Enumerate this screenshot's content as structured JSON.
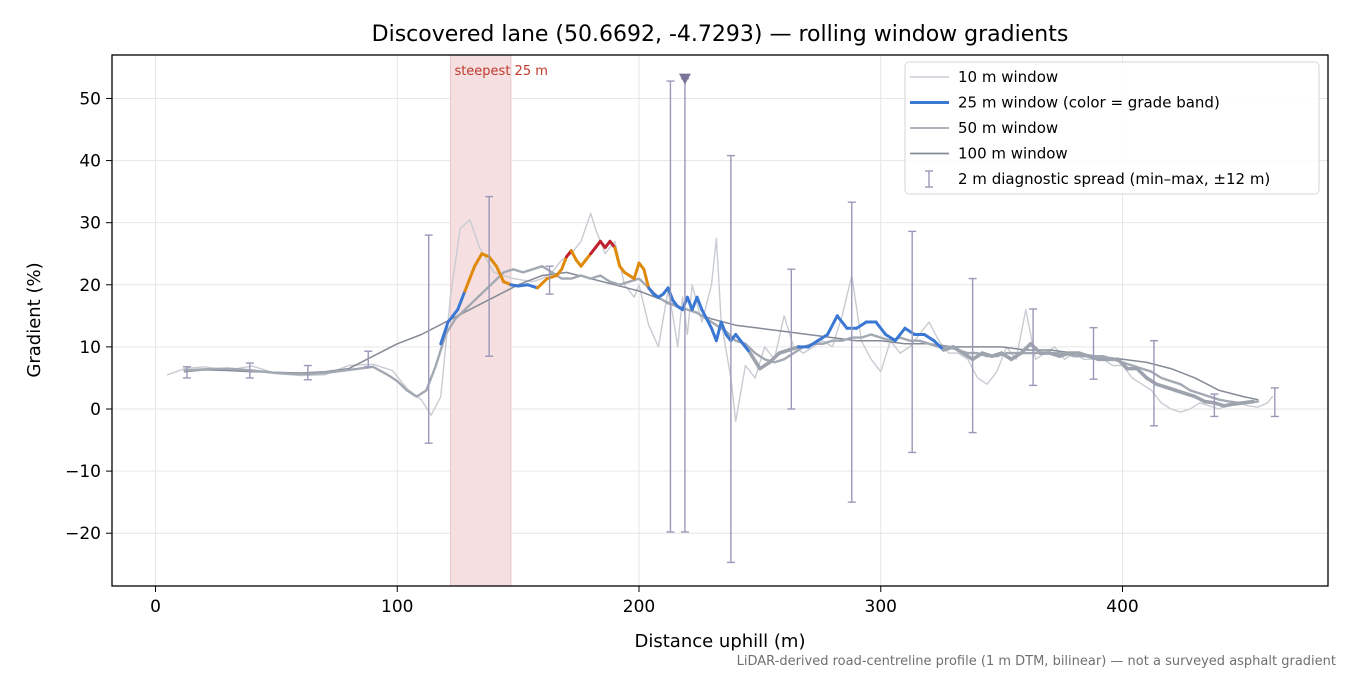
{
  "chart_data": {
    "type": "line",
    "title": "Discovered lane (50.6692, -4.7293) — rolling window gradients",
    "xlabel": "Distance uphill (m)",
    "ylabel": "Gradient (%)",
    "xlim": [
      -18,
      485
    ],
    "ylim": [
      -28.5,
      57
    ],
    "x_ticks": [
      0,
      100,
      200,
      300,
      400
    ],
    "y_ticks": [
      -20,
      -10,
      0,
      10,
      20,
      30,
      40,
      50
    ],
    "grid": true,
    "legend_position": "top-right",
    "footnote": "LiDAR-derived road-centreline profile (1 m DTM, bilinear) — not a surveyed asphalt gradient",
    "annotations": {
      "steepest_label": "steepest 25 m",
      "steepest_span": [
        122,
        147
      ],
      "clipped_marker": {
        "x": 219,
        "y": 53.2
      }
    },
    "legend": [
      {
        "label": "10 m window",
        "color": "#c8ccd2",
        "kind": "line"
      },
      {
        "label": "25 m window (color = grade band)",
        "color": "#3a78d4",
        "kind": "line"
      },
      {
        "label": "50 m window",
        "color": "#a3a9b3",
        "kind": "line"
      },
      {
        "label": "100 m window",
        "color": "#858b96",
        "kind": "line"
      },
      {
        "label": "2 m diagnostic spread (min–max, ±12 m)",
        "color": "#9a98b8",
        "kind": "errorbar"
      }
    ],
    "series": [
      {
        "name": "10 m window",
        "color": "#c8ccd2",
        "x": [
          5,
          12,
          20,
          30,
          40,
          50,
          60,
          70,
          80,
          90,
          98,
          104,
          110,
          114,
          118,
          122,
          126,
          130,
          134,
          140,
          148,
          156,
          160,
          164,
          168,
          172,
          176,
          180,
          182,
          186,
          190,
          194,
          198,
          200,
          204,
          208,
          210,
          212,
          214,
          216,
          218,
          220,
          222,
          226,
          230,
          232,
          234,
          238,
          240,
          244,
          248,
          252,
          256,
          260,
          264,
          268,
          272,
          276,
          280,
          284,
          288,
          292,
          296,
          300,
          304,
          308,
          312,
          316,
          320,
          324,
          328,
          332,
          336,
          340,
          344,
          348,
          352,
          356,
          360,
          364,
          368,
          372,
          376,
          380,
          384,
          388,
          392,
          396,
          400,
          404,
          408,
          412,
          416,
          420,
          424,
          428,
          432,
          436,
          440,
          444,
          448,
          452,
          456,
          460,
          462
        ],
        "y": [
          5.5,
          6.5,
          6.8,
          6.3,
          6.9,
          5.7,
          5.4,
          5.5,
          7.0,
          7.2,
          6.2,
          3.3,
          1.5,
          -1,
          2,
          18,
          29,
          30.5,
          26,
          22,
          21,
          20.5,
          21,
          22,
          24,
          25,
          27,
          31.5,
          29,
          25,
          27,
          20,
          18,
          20,
          13.5,
          10,
          14.5,
          19,
          15,
          10,
          18,
          12,
          20,
          14,
          20,
          27.5,
          14,
          5,
          -2,
          7,
          5,
          10,
          8,
          15,
          10,
          9,
          10,
          11,
          10,
          15,
          21.5,
          11,
          8,
          6,
          11,
          9,
          10,
          12,
          14,
          11,
          9,
          9,
          8,
          5,
          4,
          6,
          10,
          8,
          16,
          8,
          9,
          10,
          8,
          9,
          8,
          8,
          8,
          7,
          7,
          5,
          4,
          3,
          1,
          0,
          -0.5,
          0,
          1,
          0.5,
          0,
          0.8,
          1,
          0.5,
          0.3,
          1,
          2
        ]
      },
      {
        "name": "25 m window (color = grade band)",
        "color": "#3a78d4",
        "x": [
          118,
          121,
          125,
          128,
          130,
          132,
          135,
          138,
          141,
          144,
          147,
          150,
          154,
          158,
          162,
          166,
          168,
          170,
          172,
          174,
          176,
          178,
          180,
          182,
          184,
          186,
          188,
          190,
          192,
          194,
          196,
          198,
          200,
          202,
          204,
          206,
          208,
          210,
          212,
          214,
          216,
          218,
          220,
          222,
          224,
          226,
          228,
          230,
          232,
          234,
          236,
          238,
          240,
          242,
          246,
          250,
          254,
          258,
          262,
          266,
          270,
          274,
          278,
          282,
          286,
          290,
          294,
          298,
          302,
          306,
          310,
          314,
          318,
          322,
          326,
          330,
          334,
          338,
          342,
          346,
          350,
          354,
          358,
          362,
          366,
          370,
          374,
          378,
          382,
          386,
          390,
          394,
          398,
          402,
          406,
          410,
          414,
          418,
          422,
          426,
          430,
          434,
          438,
          442,
          446,
          450,
          454
        ],
        "y": [
          10.5,
          14,
          16,
          19,
          21,
          23,
          25,
          24.5,
          23,
          20.5,
          20,
          19.8,
          20,
          19.5,
          21,
          21.5,
          22.5,
          24.5,
          25.5,
          24,
          23,
          24,
          25,
          26,
          27,
          26,
          27,
          26,
          23,
          22,
          21.5,
          21,
          23.5,
          22.5,
          19.5,
          18.5,
          18,
          18.5,
          19.5,
          17.5,
          16.5,
          16,
          18,
          16,
          18,
          16,
          14.5,
          13,
          11,
          14,
          12,
          11,
          12,
          11,
          9,
          6.5,
          7.5,
          9,
          9.5,
          10,
          10,
          11,
          12,
          15,
          13,
          13,
          14,
          14,
          12,
          11,
          13,
          12,
          12,
          11,
          9.5,
          10,
          9,
          8,
          9,
          8.5,
          9,
          8,
          9,
          10.5,
          9,
          9,
          8.5,
          9,
          9,
          8.5,
          8,
          8,
          8,
          6.5,
          6.5,
          5,
          4,
          3.5,
          3,
          2.5,
          2,
          1.2,
          1,
          0.5,
          0.8,
          1,
          1.2
        ]
      },
      {
        "name": "50 m window",
        "color": "#a3a9b3",
        "x": [
          12,
          20,
          30,
          40,
          50,
          60,
          70,
          80,
          90,
          96,
          100,
          104,
          108,
          112,
          116,
          120,
          124,
          128,
          132,
          136,
          140,
          144,
          148,
          152,
          156,
          160,
          164,
          168,
          172,
          176,
          180,
          184,
          188,
          192,
          196,
          200,
          204,
          208,
          212,
          216,
          220,
          224,
          228,
          232,
          236,
          240,
          244,
          248,
          252,
          256,
          260,
          264,
          268,
          272,
          276,
          280,
          284,
          288,
          292,
          296,
          300,
          304,
          308,
          312,
          316,
          320,
          324,
          328,
          332,
          336,
          340,
          344,
          348,
          352,
          356,
          360,
          364,
          368,
          372,
          376,
          380,
          384,
          388,
          392,
          396,
          400,
          404,
          408,
          412,
          416,
          420,
          424,
          428,
          432,
          436,
          440,
          444,
          448,
          452,
          456
        ],
        "y": [
          6.2,
          6.4,
          6.5,
          6.2,
          5.8,
          5.6,
          5.8,
          6.3,
          6.8,
          5.5,
          4.5,
          3,
          2,
          3,
          7,
          12,
          14.5,
          16,
          17.5,
          19,
          20.5,
          22,
          22.5,
          22,
          22.5,
          23,
          22,
          21,
          21,
          21.5,
          21,
          21.5,
          20.5,
          20,
          20.5,
          21,
          19.5,
          18,
          17,
          16.5,
          16,
          15.5,
          14.5,
          13.5,
          12.5,
          11,
          10.5,
          9,
          8,
          7.5,
          8,
          9,
          10,
          10.5,
          10.5,
          11,
          11,
          11.5,
          11.5,
          12,
          11.5,
          11,
          11.5,
          11,
          11,
          10.5,
          10,
          10,
          9.5,
          9,
          9,
          8.5,
          8.5,
          9,
          9,
          9,
          9,
          9,
          9,
          9,
          8.5,
          8.5,
          8.5,
          8.5,
          8,
          7.5,
          7,
          6.5,
          6,
          5,
          4.5,
          4,
          3,
          2.5,
          2,
          1.5,
          1.2,
          1,
          1,
          1.2
        ]
      },
      {
        "name": "100 m window",
        "color": "#858b96",
        "x": [
          12,
          20,
          30,
          40,
          50,
          60,
          70,
          80,
          90,
          100,
          110,
          120,
          130,
          140,
          150,
          160,
          170,
          180,
          190,
          200,
          210,
          220,
          230,
          240,
          250,
          260,
          270,
          280,
          290,
          300,
          310,
          320,
          330,
          340,
          350,
          360,
          370,
          380,
          390,
          400,
          410,
          420,
          430,
          440,
          450,
          456
        ],
        "y": [
          6,
          6.3,
          6.2,
          6,
          5.9,
          5.8,
          6,
          6.5,
          8.5,
          10.5,
          12,
          14,
          16,
          18,
          20,
          21.5,
          22,
          21,
          20,
          19,
          17.5,
          16,
          14.5,
          13.5,
          13,
          12.5,
          12,
          11.5,
          11,
          11,
          10.5,
          10.5,
          10,
          10,
          10,
          9.5,
          9.5,
          9,
          8.5,
          8,
          7.5,
          6.5,
          5,
          3,
          2,
          1.5
        ]
      }
    ],
    "error_bars": {
      "name": "2 m diagnostic spread (min–max, ±12 m)",
      "x": [
        13,
        39,
        63,
        88,
        113,
        138,
        163,
        213,
        219,
        238,
        263,
        288,
        313,
        338,
        363,
        388,
        413,
        438,
        463
      ],
      "low": [
        5,
        5,
        4.7,
        6.8,
        -5.5,
        8.5,
        18.5,
        -19.8,
        -19.8,
        -24.7,
        0,
        -15,
        -7,
        -3.8,
        3.8,
        4.8,
        -2.7,
        -1.2,
        -1.2
      ],
      "high": [
        6.8,
        7.4,
        7,
        9.3,
        28,
        34.2,
        23,
        52.8,
        53.2,
        40.8,
        22.5,
        33.3,
        28.6,
        21,
        16.1,
        13.1,
        11,
        2.4,
        3.4
      ],
      "clipped_x": 219
    }
  }
}
